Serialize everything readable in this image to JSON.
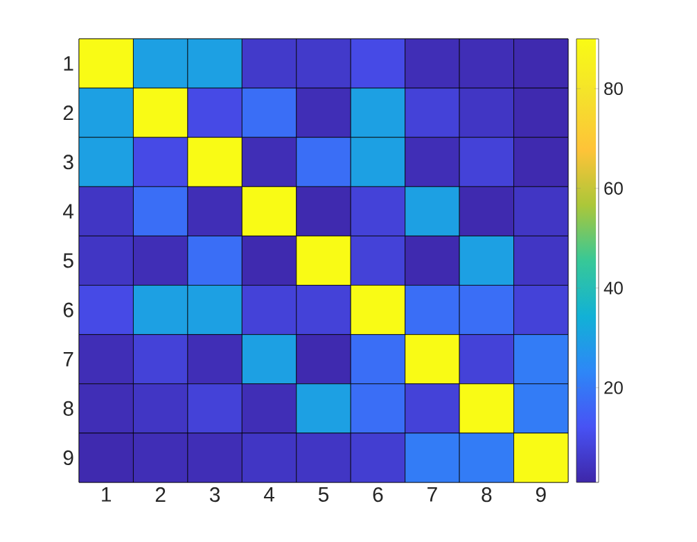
{
  "chart_data": {
    "type": "heatmap",
    "categories": [
      "1",
      "2",
      "3",
      "4",
      "5",
      "6",
      "7",
      "8",
      "9"
    ],
    "y_categories": [
      "1",
      "2",
      "3",
      "4",
      "5",
      "6",
      "7",
      "8",
      "9"
    ],
    "cells": [
      [
        90,
        30,
        30,
        6,
        6,
        10,
        3,
        3,
        2
      ],
      [
        30,
        90,
        10,
        18,
        3,
        30,
        8,
        5,
        2
      ],
      [
        30,
        10,
        90,
        3,
        18,
        30,
        3,
        8,
        2
      ],
      [
        5,
        18,
        3,
        90,
        2,
        8,
        30,
        2,
        5
      ],
      [
        5,
        3,
        18,
        2,
        90,
        8,
        2,
        30,
        5
      ],
      [
        10,
        30,
        30,
        8,
        8,
        90,
        18,
        18,
        8
      ],
      [
        3,
        8,
        3,
        30,
        2,
        18,
        90,
        8,
        21
      ],
      [
        3,
        5,
        8,
        3,
        30,
        18,
        8,
        90,
        21
      ],
      [
        2,
        3,
        3,
        5,
        5,
        7,
        21,
        21,
        90
      ]
    ],
    "clim": [
      1,
      90
    ],
    "cticks": [
      20,
      40,
      60,
      80
    ]
  }
}
